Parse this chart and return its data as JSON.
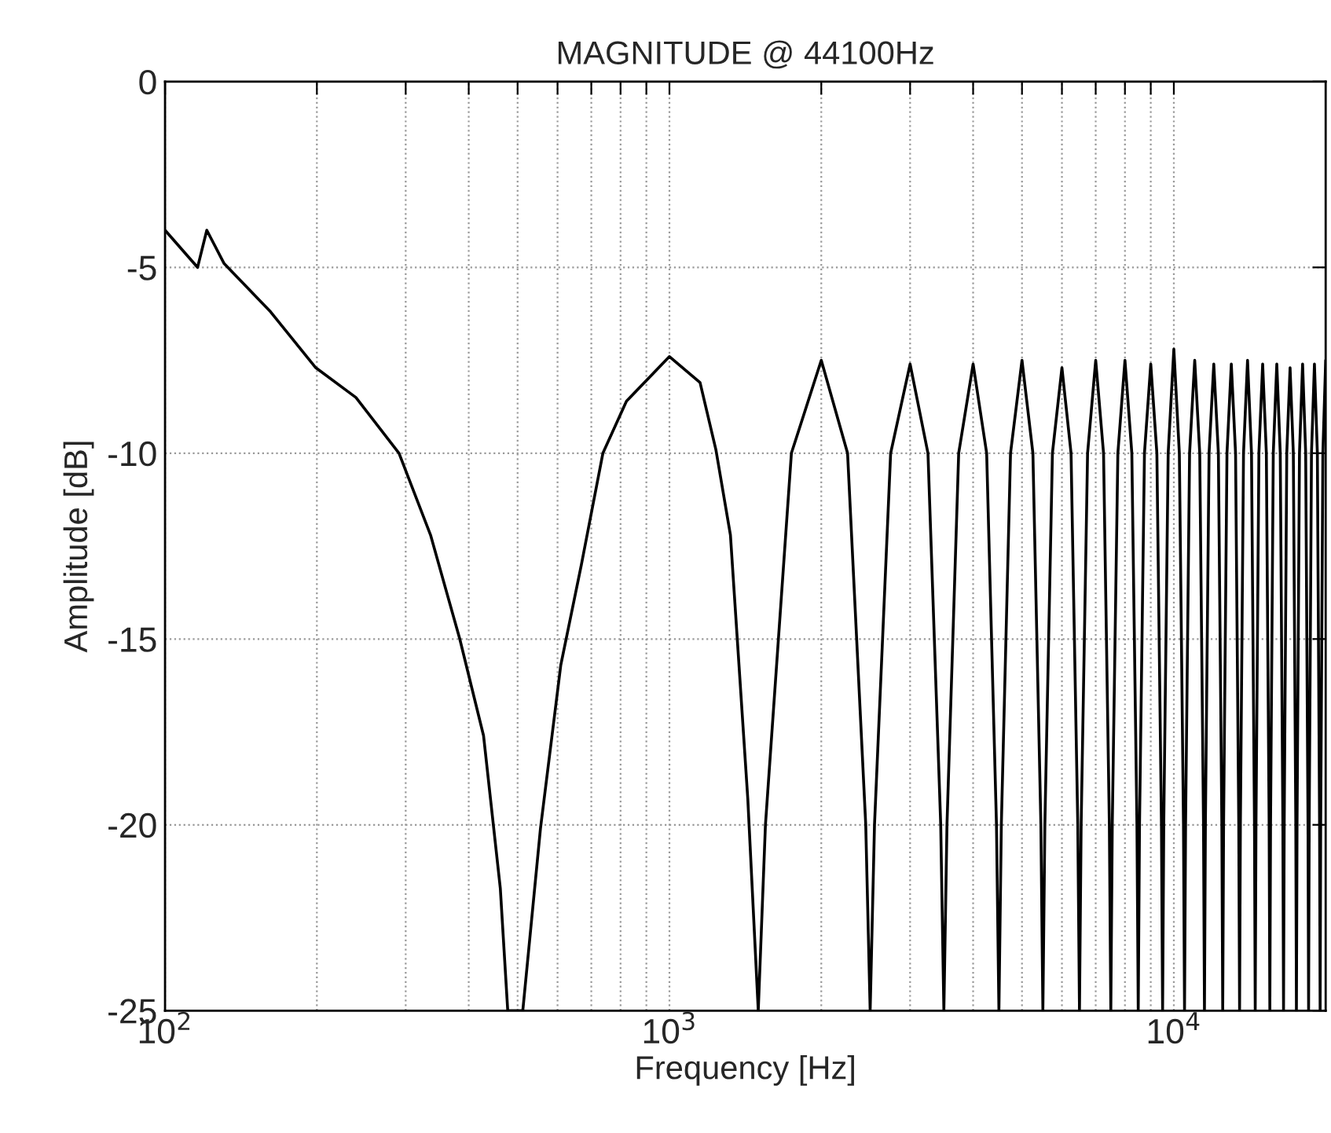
{
  "chart_data": {
    "type": "line",
    "title": "MAGNITUDE @ 44100Hz",
    "xlabel": "Frequency [Hz]",
    "ylabel": "Amplitude [dB]",
    "log": "x",
    "grid": true,
    "line_style": "solid",
    "marker": "none",
    "xlim": [
      100,
      20000
    ],
    "ylim": [
      -25,
      0
    ],
    "xticks": [
      {
        "value": 100,
        "label": "10$^{2}$"
      },
      {
        "value": 200,
        "label": null
      },
      {
        "value": 300,
        "label": null
      },
      {
        "value": 400,
        "label": null
      },
      {
        "value": 500,
        "label": null
      },
      {
        "value": 600,
        "label": null
      },
      {
        "value": 700,
        "label": null
      },
      {
        "value": 800,
        "label": null
      },
      {
        "value": 900,
        "label": null
      },
      {
        "value": 1000,
        "label": "10$^{3}$"
      },
      {
        "value": 2000,
        "label": null
      },
      {
        "value": 3000,
        "label": null
      },
      {
        "value": 4000,
        "label": null
      },
      {
        "value": 5000,
        "label": null
      },
      {
        "value": 6000,
        "label": null
      },
      {
        "value": 7000,
        "label": null
      },
      {
        "value": 8000,
        "label": null
      },
      {
        "value": 9000,
        "label": null
      },
      {
        "value": 10000,
        "label": "10$^{4}$"
      }
    ],
    "yticks": [
      -25,
      -20,
      -15,
      -10,
      -5,
      0
    ],
    "series": [
      {
        "color": "#000000",
        "x": [
          100,
          116,
          121,
          131,
          162,
          199,
          239,
          291,
          336,
          384,
          428,
          462,
          478,
          512,
          555,
          609,
          669,
          738,
          822,
          1000,
          1150,
          1236,
          1321,
          1430,
          1500,
          1550,
          1745,
          2000,
          2255,
          2450,
          2500,
          2550,
          2745,
          3000,
          3255,
          3450,
          3500,
          3550,
          3745,
          4000,
          4255,
          4450,
          4500,
          4550,
          4745,
          5000,
          5255,
          5450,
          5500,
          5550,
          5745,
          6000,
          6255,
          6450,
          6500,
          6550,
          6745,
          7000,
          7255,
          7450,
          7500,
          7550,
          7745,
          8000,
          8255,
          8450,
          8500,
          8550,
          8745,
          9000,
          9255,
          9450,
          9500,
          9550,
          9745,
          10000,
          10255,
          10450,
          10500,
          10550,
          10745,
          11000,
          11255,
          11450,
          11500,
          11550,
          11745,
          12000,
          12255,
          12450,
          12500,
          12550,
          12745,
          13000,
          13255,
          13450,
          13500,
          13550,
          13745,
          14000,
          14255,
          14450,
          14500,
          14550,
          14745,
          15000,
          15255,
          15450,
          15500,
          15550,
          15745,
          16000,
          16255,
          16450,
          16500,
          16550,
          16745,
          17000,
          17255,
          17450,
          17500,
          17550,
          17745,
          18000,
          18255,
          18450,
          18500,
          18550,
          18745,
          19000,
          19255,
          19450,
          19500,
          19550,
          19745,
          20000
        ],
        "values": [
          -4.0,
          -5.0,
          -4.0,
          -4.9,
          -6.2,
          -7.7,
          -8.5,
          -10.0,
          -12.2,
          -15.0,
          -17.6,
          -21.7,
          -25,
          -25,
          -20.1,
          -15.7,
          -13.0,
          -10.0,
          -8.6,
          -7.4,
          -8.1,
          -9.9,
          -12.2,
          -19.3,
          -25,
          -20,
          -10,
          -7.5,
          -10,
          -20,
          -25,
          -20,
          -10,
          -7.6,
          -10,
          -20,
          -25,
          -20,
          -10,
          -7.6,
          -10,
          -20,
          -25,
          -20,
          -10,
          -7.5,
          -10,
          -20,
          -25,
          -20,
          -10,
          -7.7,
          -10,
          -20,
          -25,
          -20,
          -10,
          -7.5,
          -10,
          -20,
          -25,
          -20,
          -10,
          -7.5,
          -10,
          -20,
          -25,
          -20,
          -10,
          -7.6,
          -10,
          -20,
          -25,
          -20,
          -10,
          -7.2,
          -10,
          -20,
          -25,
          -20,
          -10,
          -7.5,
          -10,
          -20,
          -25,
          -20,
          -10,
          -7.6,
          -10,
          -20,
          -25,
          -20,
          -10,
          -7.6,
          -10,
          -20,
          -25,
          -20,
          -10,
          -7.5,
          -10,
          -20,
          -25,
          -20,
          -10,
          -7.6,
          -10,
          -20,
          -25,
          -20,
          -10,
          -7.6,
          -10,
          -20,
          -25,
          -20,
          -10,
          -7.7,
          -10,
          -20,
          -25,
          -20,
          -10,
          -7.6,
          -10,
          -20,
          -25,
          -20,
          -10,
          -7.6,
          -10,
          -20,
          -25,
          -20,
          -10,
          -7.5
        ]
      }
    ]
  }
}
